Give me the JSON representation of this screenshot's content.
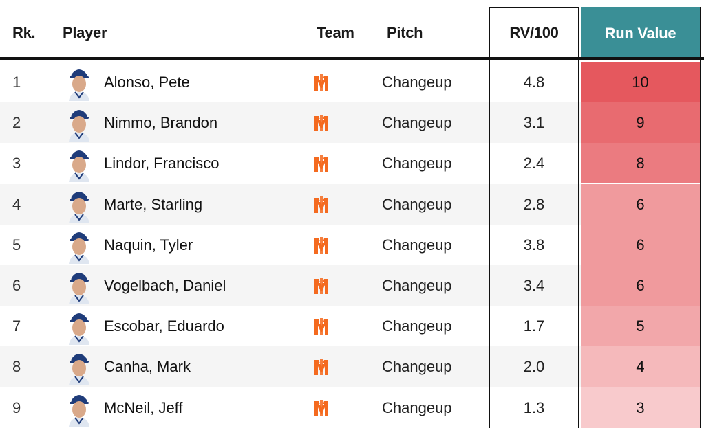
{
  "header": {
    "rank": "Rk.",
    "player": "Player",
    "team": "Team",
    "pitch": "Pitch",
    "rv100": "RV/100",
    "runvalue": "Run Value"
  },
  "colors": {
    "accent": "#3a8f96",
    "team_orange": "#f46a1f"
  },
  "rows": [
    {
      "rank": "1",
      "player": "Alonso, Pete",
      "pitch": "Changeup",
      "rv100": "4.8",
      "runvalue": "10",
      "heat": "#e5585e"
    },
    {
      "rank": "2",
      "player": "Nimmo, Brandon",
      "pitch": "Changeup",
      "rv100": "3.1",
      "runvalue": "9",
      "heat": "#e86b70"
    },
    {
      "rank": "3",
      "player": "Lindor, Francisco",
      "pitch": "Changeup",
      "rv100": "2.4",
      "runvalue": "8",
      "heat": "#eb7b80"
    },
    {
      "rank": "4",
      "player": "Marte, Starling",
      "pitch": "Changeup",
      "rv100": "2.8",
      "runvalue": "6",
      "heat": "#f09a9d"
    },
    {
      "rank": "5",
      "player": "Naquin, Tyler",
      "pitch": "Changeup",
      "rv100": "3.8",
      "runvalue": "6",
      "heat": "#f09a9d"
    },
    {
      "rank": "6",
      "player": "Vogelbach, Daniel",
      "pitch": "Changeup",
      "rv100": "3.4",
      "runvalue": "6",
      "heat": "#f09a9d"
    },
    {
      "rank": "7",
      "player": "Escobar, Eduardo",
      "pitch": "Changeup",
      "rv100": "1.7",
      "runvalue": "5",
      "heat": "#f2a7aa"
    },
    {
      "rank": "8",
      "player": "Canha, Mark",
      "pitch": "Changeup",
      "rv100": "2.0",
      "runvalue": "4",
      "heat": "#f5b9bb"
    },
    {
      "rank": "9",
      "player": "McNeil, Jeff",
      "pitch": "Changeup",
      "rv100": "1.3",
      "runvalue": "3",
      "heat": "#f8cacc"
    }
  ]
}
